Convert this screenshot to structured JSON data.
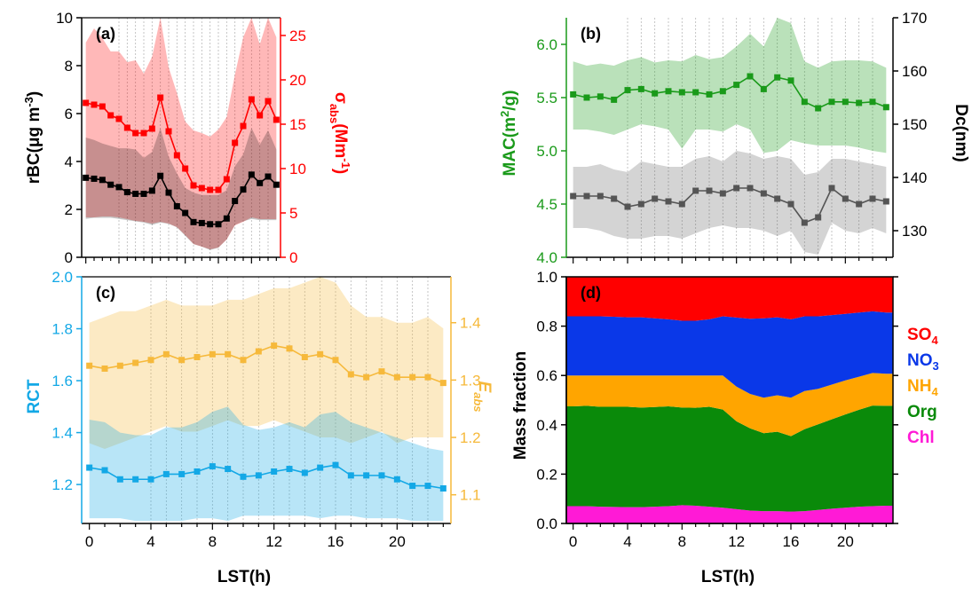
{
  "colors": {
    "black": "#000000",
    "red": "#ff0000",
    "green": "#1a9a1a",
    "gray": "#555555",
    "blue": "#13a8e6",
    "orange": "#f6b93b",
    "so4": "#ff0000",
    "no3": "#0a38e8",
    "nh4": "#ffa500",
    "org": "#0a8a0a",
    "chl": "#ff1ad6"
  },
  "chart_data": [
    {
      "panel": "(a)",
      "type": "line",
      "xlabel": "",
      "ylabel_left": "rBC(μg m⁻³)",
      "ylabel_right": "σabs(Mm⁻¹)",
      "xlim": [
        -0.5,
        23.5
      ],
      "ylim_left": [
        0,
        10
      ],
      "ylim_right": [
        0,
        27
      ],
      "left_ticks": [
        "0",
        "2",
        "4",
        "6",
        "8",
        "10"
      ],
      "right_ticks": [
        "0",
        "5",
        "10",
        "15",
        "20",
        "25"
      ],
      "x": [
        0,
        1,
        2,
        3,
        4,
        5,
        6,
        7,
        8,
        9,
        10,
        11,
        12,
        13,
        14,
        15,
        16,
        17,
        18,
        19,
        20,
        21,
        22,
        23
      ],
      "series": [
        {
          "axis": "left",
          "color": "#000000",
          "values": [
            3.32,
            3.28,
            3.23,
            3.03,
            2.93,
            2.72,
            2.65,
            2.65,
            2.78,
            3.4,
            2.7,
            2.13,
            1.85,
            1.47,
            1.43,
            1.38,
            1.38,
            1.62,
            2.35,
            2.83,
            3.45,
            3.1,
            3.37,
            3.03
          ],
          "band_low": [
            1.6,
            1.65,
            1.65,
            1.65,
            1.6,
            1.55,
            1.5,
            1.45,
            1.35,
            1.45,
            1.4,
            1.25,
            0.9,
            0.55,
            0.45,
            0.3,
            0.4,
            0.75,
            1.35,
            1.5,
            1.6,
            1.55,
            1.55,
            1.55
          ],
          "band_high": [
            5.0,
            4.9,
            4.75,
            4.65,
            4.55,
            4.55,
            4.5,
            4.15,
            4.4,
            5.4,
            4.2,
            3.5,
            2.9,
            2.7,
            2.6,
            2.6,
            2.6,
            2.8,
            3.8,
            4.3,
            5.4,
            4.7,
            5.3,
            4.5
          ]
        },
        {
          "axis": "right",
          "color": "#ff0000",
          "values": [
            17.4,
            17.2,
            17.0,
            16.0,
            15.6,
            14.6,
            14.0,
            14.0,
            14.5,
            18.0,
            14.2,
            11.5,
            10.0,
            8.1,
            7.8,
            7.6,
            7.6,
            8.8,
            12.9,
            14.8,
            17.8,
            16.0,
            17.6,
            15.5
          ],
          "band_low": [
            4.5,
            4.5,
            4.6,
            4.6,
            4.5,
            4.3,
            4.1,
            4.0,
            3.8,
            4.0,
            3.8,
            3.4,
            2.5,
            1.5,
            1.2,
            0.9,
            1.1,
            2.0,
            3.6,
            4.0,
            4.5,
            4.3,
            4.3,
            4.3
          ],
          "band_high": [
            24.2,
            25.8,
            24.7,
            23.2,
            23.2,
            22.0,
            22.2,
            20.7,
            22.6,
            27.0,
            21.4,
            18.5,
            15.3,
            14.3,
            14.0,
            13.6,
            14.4,
            15.8,
            20.6,
            24.8,
            27.0,
            24.0,
            27.0,
            24.8
          ]
        }
      ]
    },
    {
      "panel": "(b)",
      "type": "line",
      "xlabel": "",
      "ylabel_left": "MAC(m²/g)",
      "ylabel_right": "Dc(nm)",
      "xlim": [
        -0.5,
        23.5
      ],
      "ylim_left": [
        4.0,
        6.25
      ],
      "ylim_right": [
        125,
        170
      ],
      "left_ticks": [
        "4.0",
        "4.5",
        "5.0",
        "5.5",
        "6.0"
      ],
      "right_ticks": [
        "130",
        "140",
        "150",
        "160",
        "170"
      ],
      "x": [
        0,
        1,
        2,
        3,
        4,
        5,
        6,
        7,
        8,
        9,
        10,
        11,
        12,
        13,
        14,
        15,
        16,
        17,
        18,
        19,
        20,
        21,
        22,
        23
      ],
      "series": [
        {
          "axis": "left",
          "color": "#1a9a1a",
          "values": [
            5.53,
            5.5,
            5.51,
            5.48,
            5.57,
            5.58,
            5.54,
            5.56,
            5.55,
            5.55,
            5.53,
            5.56,
            5.62,
            5.7,
            5.58,
            5.69,
            5.66,
            5.46,
            5.4,
            5.46,
            5.46,
            5.45,
            5.46,
            5.41
          ],
          "band_low": [
            5.2,
            5.2,
            5.18,
            5.15,
            5.2,
            5.25,
            5.23,
            5.2,
            5.02,
            5.2,
            5.2,
            5.18,
            5.25,
            5.2,
            4.98,
            5.0,
            5.1,
            5.07,
            5.05,
            5.05,
            5.05,
            5.03,
            5.0,
            4.98
          ],
          "band_high": [
            5.84,
            5.8,
            5.82,
            5.8,
            5.85,
            5.88,
            5.83,
            5.85,
            5.84,
            5.9,
            5.86,
            5.88,
            5.98,
            6.1,
            5.98,
            6.25,
            6.2,
            5.84,
            5.78,
            5.84,
            5.85,
            5.85,
            5.84,
            5.78
          ]
        },
        {
          "axis": "right",
          "color": "#555555",
          "values": [
            136.5,
            136.5,
            136.5,
            136.0,
            134.5,
            135.0,
            136.0,
            135.5,
            135.0,
            137.5,
            137.5,
            137.0,
            138.0,
            138.0,
            137.0,
            136.0,
            135.0,
            131.5,
            132.5,
            138.0,
            136.0,
            135.0,
            136.0,
            135.5
          ],
          "band_low": [
            130.5,
            130.5,
            130.0,
            129.0,
            128.5,
            128.5,
            129.0,
            129.0,
            128.5,
            129.5,
            130.5,
            131.0,
            130.5,
            130.5,
            130.0,
            129.0,
            130.0,
            126.0,
            125.5,
            131.5,
            130.0,
            129.5,
            130.5,
            129.5
          ],
          "band_high": [
            142.0,
            142.0,
            142.5,
            141.5,
            141.0,
            143.0,
            142.5,
            142.0,
            142.0,
            143.5,
            144.0,
            143.0,
            145.0,
            144.5,
            143.5,
            144.0,
            143.5,
            140.5,
            141.0,
            143.5,
            143.5,
            143.0,
            142.5,
            142.0
          ]
        }
      ]
    },
    {
      "panel": "(c)",
      "type": "line",
      "xlabel": "LST(h)",
      "ylabel_left": "RCT",
      "ylabel_right": "Eabs",
      "xlim": [
        -0.5,
        23.5
      ],
      "xticks": [
        "0",
        "4",
        "8",
        "12",
        "16",
        "20"
      ],
      "ylim_left": [
        1.05,
        2.0
      ],
      "ylim_right": [
        1.05,
        1.48
      ],
      "left_ticks": [
        "1.2",
        "1.4",
        "1.6",
        "1.8",
        "2.0"
      ],
      "right_ticks": [
        "1.1",
        "1.2",
        "1.3",
        "1.4"
      ],
      "x": [
        0,
        1,
        2,
        3,
        4,
        5,
        6,
        7,
        8,
        9,
        10,
        11,
        12,
        13,
        14,
        15,
        16,
        17,
        18,
        19,
        20,
        21,
        22,
        23
      ],
      "series": [
        {
          "axis": "left",
          "color": "#13a8e6",
          "values": [
            1.265,
            1.255,
            1.22,
            1.22,
            1.22,
            1.24,
            1.24,
            1.25,
            1.27,
            1.26,
            1.23,
            1.235,
            1.25,
            1.26,
            1.245,
            1.265,
            1.275,
            1.235,
            1.235,
            1.235,
            1.22,
            1.195,
            1.195,
            1.185
          ],
          "band_low": [
            1.07,
            1.07,
            1.07,
            1.06,
            1.06,
            1.06,
            1.06,
            1.07,
            1.07,
            1.06,
            1.08,
            1.08,
            1.08,
            1.08,
            1.08,
            1.07,
            1.08,
            1.08,
            1.07,
            1.07,
            1.07,
            1.06,
            1.06,
            1.06
          ],
          "band_high": [
            1.45,
            1.44,
            1.4,
            1.39,
            1.39,
            1.42,
            1.42,
            1.44,
            1.48,
            1.5,
            1.43,
            1.41,
            1.42,
            1.44,
            1.42,
            1.47,
            1.48,
            1.44,
            1.42,
            1.4,
            1.38,
            1.36,
            1.34,
            1.33
          ]
        },
        {
          "axis": "right",
          "color": "#f6b93b",
          "values": [
            1.325,
            1.32,
            1.325,
            1.33,
            1.335,
            1.345,
            1.335,
            1.34,
            1.345,
            1.345,
            1.335,
            1.35,
            1.36,
            1.355,
            1.34,
            1.345,
            1.335,
            1.31,
            1.305,
            1.315,
            1.305,
            1.305,
            1.305,
            1.295
          ],
          "band_low": [
            1.19,
            1.18,
            1.19,
            1.2,
            1.21,
            1.22,
            1.21,
            1.21,
            1.22,
            1.23,
            1.22,
            1.22,
            1.23,
            1.22,
            1.21,
            1.2,
            1.2,
            1.19,
            1.2,
            1.21,
            1.19,
            1.2,
            1.2,
            1.2
          ],
          "band_high": [
            1.4,
            1.41,
            1.42,
            1.42,
            1.43,
            1.44,
            1.43,
            1.43,
            1.43,
            1.44,
            1.44,
            1.45,
            1.46,
            1.46,
            1.47,
            1.48,
            1.47,
            1.43,
            1.41,
            1.41,
            1.4,
            1.4,
            1.41,
            1.39
          ]
        }
      ]
    },
    {
      "panel": "(d)",
      "type": "area",
      "xlabel": "LST(h)",
      "ylabel": "Mass fraction",
      "xlim": [
        -0.5,
        23.5
      ],
      "xticks": [
        "0",
        "4",
        "8",
        "12",
        "16",
        "20"
      ],
      "ylim": [
        0,
        1.0
      ],
      "yticks": [
        "0.0",
        "0.2",
        "0.4",
        "0.6",
        "0.8",
        "1.0"
      ],
      "x": [
        0,
        1,
        2,
        3,
        4,
        5,
        6,
        7,
        8,
        9,
        10,
        11,
        12,
        13,
        14,
        15,
        16,
        17,
        18,
        19,
        20,
        21,
        22,
        23
      ],
      "stack_order": [
        "Chl",
        "Org",
        "NH4",
        "NO3",
        "SO4"
      ],
      "series": [
        {
          "name": "Chl",
          "key": "chl",
          "color": "#ff1ad6",
          "values": [
            0.07,
            0.07,
            0.068,
            0.067,
            0.066,
            0.066,
            0.068,
            0.07,
            0.074,
            0.072,
            0.068,
            0.064,
            0.058,
            0.052,
            0.05,
            0.05,
            0.048,
            0.05,
            0.055,
            0.06,
            0.064,
            0.068,
            0.07,
            0.072
          ]
        },
        {
          "name": "Org",
          "key": "org",
          "color": "#0a8a0a",
          "values": [
            0.405,
            0.407,
            0.405,
            0.406,
            0.407,
            0.404,
            0.404,
            0.405,
            0.396,
            0.397,
            0.405,
            0.398,
            0.356,
            0.334,
            0.316,
            0.322,
            0.306,
            0.332,
            0.347,
            0.362,
            0.378,
            0.393,
            0.408,
            0.405
          ]
        },
        {
          "name": "NH4",
          "key": "nh4",
          "color": "#ffa500",
          "values": [
            0.125,
            0.123,
            0.127,
            0.127,
            0.127,
            0.13,
            0.128,
            0.125,
            0.13,
            0.131,
            0.127,
            0.138,
            0.141,
            0.139,
            0.144,
            0.148,
            0.156,
            0.155,
            0.144,
            0.141,
            0.138,
            0.134,
            0.132,
            0.13
          ]
        },
        {
          "name": "NO3",
          "key": "no3",
          "color": "#0a38e8",
          "values": [
            0.24,
            0.24,
            0.24,
            0.238,
            0.236,
            0.236,
            0.232,
            0.228,
            0.222,
            0.222,
            0.228,
            0.24,
            0.28,
            0.305,
            0.322,
            0.316,
            0.318,
            0.303,
            0.294,
            0.282,
            0.27,
            0.26,
            0.25,
            0.248
          ]
        },
        {
          "name": "SO4",
          "key": "so4",
          "color": "#ff0000",
          "values": [
            0.16,
            0.16,
            0.16,
            0.162,
            0.164,
            0.164,
            0.168,
            0.172,
            0.178,
            0.178,
            0.172,
            0.16,
            0.165,
            0.17,
            0.168,
            0.164,
            0.172,
            0.16,
            0.16,
            0.155,
            0.15,
            0.145,
            0.14,
            0.145
          ]
        }
      ],
      "legend": [
        {
          "key": "so4",
          "base": "SO",
          "sub": "4"
        },
        {
          "key": "no3",
          "base": "NO",
          "sub": "3"
        },
        {
          "key": "nh4",
          "base": "NH",
          "sub": "4"
        },
        {
          "key": "org",
          "base": "Org",
          "sub": ""
        },
        {
          "key": "chl",
          "base": "Chl",
          "sub": ""
        }
      ]
    }
  ],
  "labels": {
    "a_left": "rBC(μg m",
    "a_left_sup": "-3",
    "a_left_close": ")",
    "a_right_sigma": "σ",
    "a_right_sub": "abs",
    "a_right_rest": "(Mm",
    "a_right_sup": "-1",
    "a_right_close": ")",
    "b_left": "MAC(m",
    "b_left_sup": "2",
    "b_left_close": "/g)",
    "b_right": "Dc(nm)",
    "c_left": "RCT",
    "c_right_E": "E",
    "c_right_sub": "abs",
    "d_left": "Mass fraction",
    "x_c": "LST(h)",
    "x_d": "LST(h)"
  }
}
